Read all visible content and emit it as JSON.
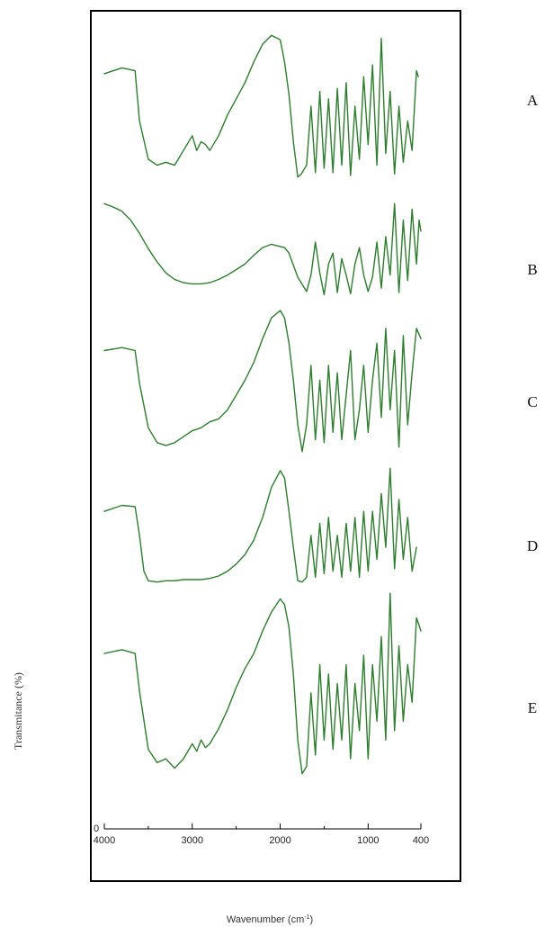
{
  "chart_data": {
    "type": "line",
    "title": "",
    "xlabel": "Wavenumber (cm",
    "xlabel_sup": "-1",
    "xlabel_close": ")",
    "ylabel": "Transmitance  (%)",
    "y_tick_zero": "0",
    "xlim": [
      4000,
      400
    ],
    "x_reversed": true,
    "ylim": [
      0,
      100
    ],
    "grid": false,
    "legend": "none",
    "line_color": "#2e7d2e",
    "x_ticks": [
      {
        "value": 4000,
        "label": "4000"
      },
      {
        "value": 3000,
        "label": "3000"
      },
      {
        "value": 2000,
        "label": "2000"
      },
      {
        "value": 1000,
        "label": "1000"
      },
      {
        "value": 400,
        "label": "400"
      }
    ],
    "x_minor_ticks": [
      3500,
      2500,
      1500
    ],
    "series": [
      {
        "name": "A",
        "x": [
          4000,
          3800,
          3650,
          3600,
          3500,
          3400,
          3300,
          3200,
          3100,
          3000,
          2950,
          2900,
          2850,
          2800,
          2700,
          2600,
          2500,
          2400,
          2300,
          2200,
          2100,
          2000,
          1950,
          1900,
          1850,
          1800,
          1760,
          1700,
          1650,
          1600,
          1550,
          1500,
          1450,
          1400,
          1350,
          1300,
          1250,
          1200,
          1150,
          1100,
          1050,
          1000,
          950,
          900,
          850,
          800,
          750,
          700,
          650,
          600,
          550,
          500,
          450,
          430
        ],
        "y": [
          72,
          76,
          74,
          40,
          14,
          10,
          12,
          10,
          20,
          30,
          20,
          26,
          24,
          20,
          30,
          44,
          55,
          66,
          80,
          92,
          98,
          95,
          80,
          58,
          26,
          2,
          4,
          10,
          50,
          5,
          60,
          8,
          55,
          5,
          62,
          10,
          66,
          3,
          50,
          14,
          70,
          24,
          78,
          10,
          96,
          18,
          60,
          4,
          50,
          12,
          40,
          20,
          74,
          70
        ]
      },
      {
        "name": "B",
        "x": [
          4000,
          3900,
          3800,
          3700,
          3600,
          3500,
          3400,
          3300,
          3200,
          3100,
          3000,
          2900,
          2800,
          2700,
          2600,
          2500,
          2400,
          2300,
          2200,
          2100,
          2000,
          1950,
          1900,
          1800,
          1700,
          1650,
          1600,
          1550,
          1500,
          1450,
          1400,
          1350,
          1300,
          1250,
          1200,
          1150,
          1100,
          1050,
          1000,
          950,
          900,
          850,
          800,
          750,
          700,
          650,
          600,
          550,
          500,
          450,
          420,
          400
        ],
        "y": [
          85,
          82,
          78,
          70,
          58,
          44,
          32,
          22,
          16,
          13,
          12,
          12,
          13,
          16,
          20,
          25,
          30,
          38,
          45,
          48,
          46,
          45,
          40,
          18,
          5,
          20,
          50,
          22,
          2,
          30,
          40,
          4,
          35,
          20,
          3,
          30,
          45,
          20,
          5,
          18,
          50,
          8,
          55,
          20,
          85,
          4,
          70,
          15,
          80,
          30,
          70,
          60
        ]
      },
      {
        "name": "C",
        "x": [
          4000,
          3800,
          3650,
          3600,
          3500,
          3400,
          3300,
          3200,
          3100,
          3000,
          2900,
          2800,
          2700,
          2600,
          2500,
          2400,
          2300,
          2200,
          2100,
          2000,
          1950,
          1900,
          1850,
          1800,
          1750,
          1700,
          1650,
          1600,
          1550,
          1500,
          1450,
          1400,
          1350,
          1300,
          1250,
          1200,
          1150,
          1100,
          1050,
          1000,
          950,
          900,
          850,
          800,
          750,
          700,
          650,
          600,
          550,
          500,
          450,
          400
        ],
        "y": [
          70,
          72,
          70,
          48,
          18,
          8,
          6,
          8,
          12,
          16,
          18,
          22,
          24,
          30,
          40,
          50,
          62,
          78,
          92,
          97,
          92,
          75,
          50,
          20,
          2,
          20,
          60,
          10,
          50,
          8,
          60,
          15,
          55,
          10,
          40,
          70,
          10,
          30,
          60,
          15,
          50,
          75,
          25,
          85,
          30,
          70,
          5,
          80,
          20,
          55,
          85,
          78
        ]
      },
      {
        "name": "D",
        "x": [
          4000,
          3800,
          3650,
          3600,
          3550,
          3500,
          3400,
          3300,
          3200,
          3100,
          3000,
          2900,
          2800,
          2700,
          2600,
          2500,
          2400,
          2300,
          2200,
          2100,
          2000,
          1950,
          1900,
          1850,
          1800,
          1750,
          1700,
          1650,
          1600,
          1550,
          1500,
          1450,
          1400,
          1350,
          1300,
          1250,
          1200,
          1150,
          1100,
          1050,
          1000,
          950,
          900,
          850,
          800,
          750,
          700,
          650,
          600,
          550,
          500,
          450
        ],
        "y": [
          60,
          65,
          64,
          40,
          10,
          2,
          1,
          2,
          2,
          3,
          3,
          3,
          4,
          6,
          10,
          16,
          24,
          36,
          55,
          80,
          94,
          88,
          60,
          30,
          2,
          1,
          5,
          40,
          5,
          50,
          8,
          55,
          10,
          40,
          5,
          50,
          10,
          55,
          5,
          60,
          10,
          60,
          20,
          75,
          30,
          96,
          12,
          70,
          20,
          55,
          10,
          30
        ]
      },
      {
        "name": "E",
        "x": [
          4000,
          3800,
          3650,
          3600,
          3500,
          3400,
          3300,
          3200,
          3100,
          3000,
          2950,
          2900,
          2850,
          2800,
          2700,
          2600,
          2500,
          2400,
          2300,
          2200,
          2100,
          2000,
          1950,
          1900,
          1850,
          1800,
          1750,
          1700,
          1650,
          1600,
          1550,
          1500,
          1450,
          1400,
          1350,
          1300,
          1250,
          1200,
          1150,
          1100,
          1050,
          1000,
          950,
          900,
          850,
          800,
          750,
          700,
          650,
          600,
          550,
          500,
          450,
          400
        ],
        "y": [
          66,
          68,
          66,
          46,
          15,
          8,
          10,
          5,
          10,
          18,
          14,
          20,
          16,
          18,
          26,
          36,
          48,
          58,
          66,
          78,
          88,
          95,
          92,
          80,
          55,
          20,
          2,
          6,
          45,
          12,
          60,
          20,
          55,
          15,
          50,
          20,
          60,
          10,
          50,
          25,
          65,
          10,
          60,
          30,
          75,
          20,
          98,
          25,
          70,
          30,
          60,
          40,
          85,
          78
        ]
      }
    ]
  }
}
